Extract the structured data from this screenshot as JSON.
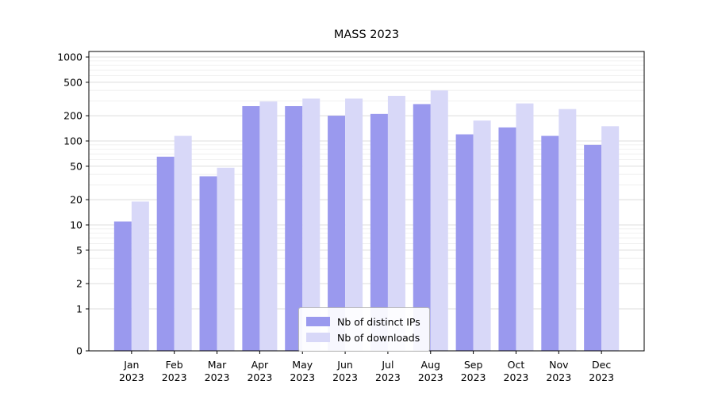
{
  "chart_data": {
    "type": "bar",
    "title": "MASS 2023",
    "year": "2023",
    "categories": [
      "Jan",
      "Feb",
      "Mar",
      "Apr",
      "May",
      "Jun",
      "Jul",
      "Aug",
      "Sep",
      "Oct",
      "Nov",
      "Dec"
    ],
    "series": [
      {
        "name": "Nb of distinct IPs",
        "color": "#9a99ee",
        "values": [
          11,
          65,
          38,
          260,
          260,
          200,
          210,
          275,
          120,
          145,
          115,
          90
        ]
      },
      {
        "name": "Nb of downloads",
        "color": "#d8d8f8",
        "values": [
          19,
          115,
          48,
          295,
          320,
          320,
          345,
          400,
          175,
          280,
          240,
          150
        ]
      }
    ],
    "yscale": "symlog",
    "yticks": [
      0,
      1,
      2,
      5,
      10,
      20,
      50,
      100,
      200,
      500,
      1000
    ],
    "ylim": [
      0,
      1165
    ],
    "grid": true,
    "legend_position": "lower center",
    "colors": {
      "grid_major": "#dcdcdc",
      "grid_minor": "#ededed",
      "axis": "#000000",
      "background": "#ffffff"
    }
  }
}
